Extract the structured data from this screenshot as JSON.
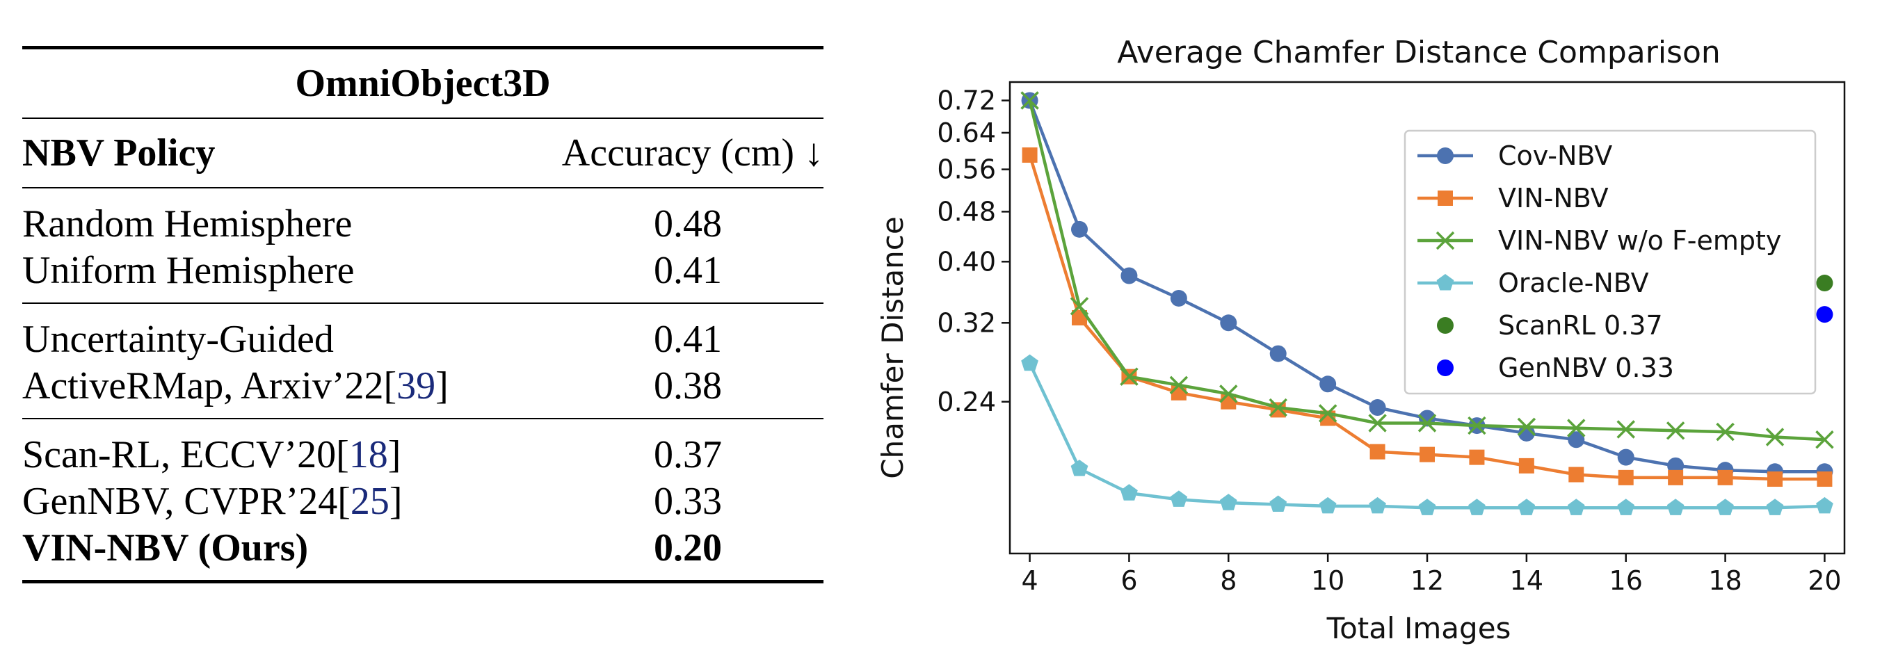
{
  "table": {
    "title": "OmniObject3D",
    "col_policy": "NBV Policy",
    "col_accuracy": "Accuracy (cm) ↓",
    "groups": [
      [
        {
          "policy": "Random Hemisphere",
          "accuracy": "0.48"
        },
        {
          "policy": "Uniform Hemisphere",
          "accuracy": "0.41"
        }
      ],
      [
        {
          "policy": "Uncertainty-Guided",
          "accuracy": "0.41"
        },
        {
          "policy": "ActiveRMap, Arxiv’22",
          "cite": "39",
          "accuracy": "0.38"
        }
      ],
      [
        {
          "policy": "Scan-RL, ECCV’20",
          "cite": "18",
          "accuracy": "0.37"
        },
        {
          "policy": "GenNBV, CVPR’24",
          "cite": "25",
          "accuracy": "0.33"
        },
        {
          "policy": "VIN-NBV (Ours)",
          "accuracy": "0.20",
          "bold": true
        }
      ]
    ]
  },
  "chart_data": {
    "type": "line",
    "title": "Average Chamfer Distance Comparison",
    "xlabel": "Total Images",
    "ylabel": "Chamfer Distance",
    "yscale": "log",
    "x": [
      4,
      5,
      6,
      7,
      8,
      9,
      10,
      11,
      12,
      13,
      14,
      15,
      16,
      17,
      18,
      19,
      20
    ],
    "xticks": [
      4,
      6,
      8,
      10,
      12,
      14,
      16,
      18,
      20
    ],
    "yticks": [
      0.72,
      0.64,
      0.56,
      0.48,
      0.4,
      0.32,
      0.24
    ],
    "xlim": [
      3.6,
      20.4
    ],
    "ylim": [
      0.138,
      0.77
    ],
    "grid": false,
    "legend_position": "upper-right",
    "series": [
      {
        "name": "Cov-NBV",
        "color": "#4c72b0",
        "marker": "circle",
        "values": [
          0.72,
          0.45,
          0.38,
          0.35,
          0.32,
          0.286,
          0.256,
          0.235,
          0.226,
          0.22,
          0.214,
          0.209,
          0.196,
          0.19,
          0.187,
          0.186,
          0.186
        ]
      },
      {
        "name": "VIN-NBV",
        "color": "#ed7d31",
        "marker": "square",
        "values": [
          0.59,
          0.326,
          0.263,
          0.248,
          0.24,
          0.233,
          0.226,
          0.2,
          0.198,
          0.196,
          0.19,
          0.184,
          0.182,
          0.182,
          0.182,
          0.181,
          0.181
        ]
      },
      {
        "name": "VIN-NBV w/o F-empty",
        "color": "#5ba33b",
        "marker": "x",
        "values": [
          0.72,
          0.34,
          0.263,
          0.255,
          0.247,
          0.235,
          0.23,
          0.222,
          0.222,
          0.22,
          0.219,
          0.218,
          0.217,
          0.216,
          0.215,
          0.211,
          0.209
        ]
      },
      {
        "name": "Oracle-NBV",
        "color": "#6fc1d1",
        "marker": "pentagon",
        "values": [
          0.276,
          0.188,
          0.172,
          0.168,
          0.166,
          0.165,
          0.164,
          0.164,
          0.163,
          0.163,
          0.163,
          0.163,
          0.163,
          0.163,
          0.163,
          0.163,
          0.164
        ]
      }
    ],
    "points": [
      {
        "name": "ScanRL 0.37",
        "color": "#3a7d22",
        "x": 20,
        "y": 0.37
      },
      {
        "name": "GenNBV 0.33",
        "color": "#0000ff",
        "x": 20,
        "y": 0.33
      }
    ]
  }
}
